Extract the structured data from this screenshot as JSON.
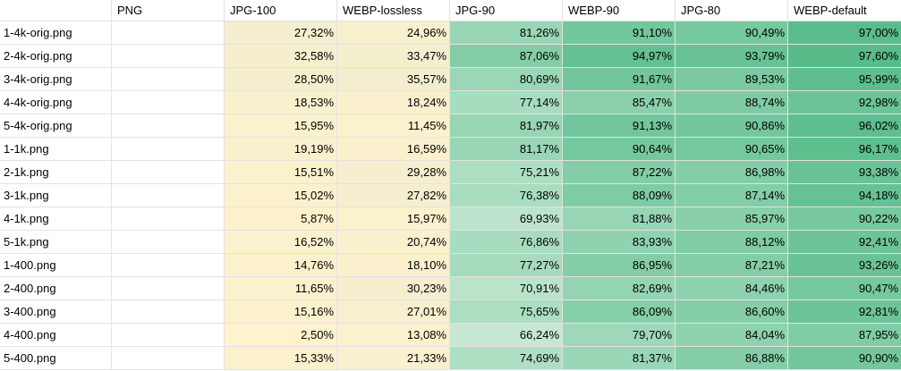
{
  "columns": [
    "",
    "PNG",
    "JPG-100",
    "WEBP-lossless",
    "JPG-90",
    "WEBP-90",
    "JPG-80",
    "WEBP-default"
  ],
  "colors": {
    "low_yellow": "#fff1c8",
    "high_green": "#57bb8a",
    "grid": "#e2e2e2"
  },
  "rows": [
    {
      "name": "1-4k-orig.png",
      "values": [
        "",
        "27,32%",
        "24,96%",
        "81,26%",
        "91,10%",
        "90,49%",
        "97,00%"
      ],
      "nums": [
        null,
        27.32,
        24.96,
        81.26,
        91.1,
        90.49,
        97.0
      ]
    },
    {
      "name": "2-4k-orig.png",
      "values": [
        "",
        "32,58%",
        "33,47%",
        "87,06%",
        "94,97%",
        "93,79%",
        "97,60%"
      ],
      "nums": [
        null,
        32.58,
        33.47,
        87.06,
        94.97,
        93.79,
        97.6
      ]
    },
    {
      "name": "3-4k-orig.png",
      "values": [
        "",
        "28,50%",
        "35,57%",
        "80,69%",
        "91,67%",
        "89,53%",
        "95,99%"
      ],
      "nums": [
        null,
        28.5,
        35.57,
        80.69,
        91.67,
        89.53,
        95.99
      ]
    },
    {
      "name": "4-4k-orig.png",
      "values": [
        "",
        "18,53%",
        "18,24%",
        "77,14%",
        "85,47%",
        "88,74%",
        "92,98%"
      ],
      "nums": [
        null,
        18.53,
        18.24,
        77.14,
        85.47,
        88.74,
        92.98
      ]
    },
    {
      "name": "5-4k-orig.png",
      "values": [
        "",
        "15,95%",
        "11,45%",
        "81,97%",
        "91,13%",
        "90,86%",
        "96,02%"
      ],
      "nums": [
        null,
        15.95,
        11.45,
        81.97,
        91.13,
        90.86,
        96.02
      ]
    },
    {
      "name": "1-1k.png",
      "values": [
        "",
        "19,19%",
        "16,59%",
        "81,17%",
        "90,64%",
        "90,65%",
        "96,17%"
      ],
      "nums": [
        null,
        19.19,
        16.59,
        81.17,
        90.64,
        90.65,
        96.17
      ]
    },
    {
      "name": "2-1k.png",
      "values": [
        "",
        "15,51%",
        "29,28%",
        "75,21%",
        "87,22%",
        "86,98%",
        "93,38%"
      ],
      "nums": [
        null,
        15.51,
        29.28,
        75.21,
        87.22,
        86.98,
        93.38
      ]
    },
    {
      "name": "3-1k.png",
      "values": [
        "",
        "15,02%",
        "27,82%",
        "76,38%",
        "88,09%",
        "87,14%",
        "94,18%"
      ],
      "nums": [
        null,
        15.02,
        27.82,
        76.38,
        88.09,
        87.14,
        94.18
      ]
    },
    {
      "name": "4-1k.png",
      "values": [
        "",
        "5,87%",
        "15,97%",
        "69,93%",
        "81,88%",
        "85,97%",
        "90,22%"
      ],
      "nums": [
        null,
        5.87,
        15.97,
        69.93,
        81.88,
        85.97,
        90.22
      ]
    },
    {
      "name": "5-1k.png",
      "values": [
        "",
        "16,52%",
        "20,74%",
        "76,86%",
        "83,93%",
        "88,12%",
        "92,41%"
      ],
      "nums": [
        null,
        16.52,
        20.74,
        76.86,
        83.93,
        88.12,
        92.41
      ]
    },
    {
      "name": "1-400.png",
      "values": [
        "",
        "14,76%",
        "18,10%",
        "77,27%",
        "86,95%",
        "87,21%",
        "93,26%"
      ],
      "nums": [
        null,
        14.76,
        18.1,
        77.27,
        86.95,
        87.21,
        93.26
      ]
    },
    {
      "name": "2-400.png",
      "values": [
        "",
        "11,65%",
        "30,23%",
        "70,91%",
        "82,69%",
        "84,46%",
        "90,47%"
      ],
      "nums": [
        null,
        11.65,
        30.23,
        70.91,
        82.69,
        84.46,
        90.47
      ]
    },
    {
      "name": "3-400.png",
      "values": [
        "",
        "15,16%",
        "27,01%",
        "75,65%",
        "86,09%",
        "86,60%",
        "92,81%"
      ],
      "nums": [
        null,
        15.16,
        27.01,
        75.65,
        86.09,
        86.6,
        92.81
      ]
    },
    {
      "name": "4-400.png",
      "values": [
        "",
        "2,50%",
        "13,08%",
        "66,24%",
        "79,70%",
        "84,04%",
        "87,95%"
      ],
      "nums": [
        null,
        2.5,
        13.08,
        66.24,
        79.7,
        84.04,
        87.95
      ]
    },
    {
      "name": "5-400.png",
      "values": [
        "",
        "15,33%",
        "21,33%",
        "74,69%",
        "81,37%",
        "86,88%",
        "90,90%"
      ],
      "nums": [
        null,
        15.33,
        21.33,
        74.69,
        81.37,
        86.88,
        90.9
      ]
    }
  ]
}
